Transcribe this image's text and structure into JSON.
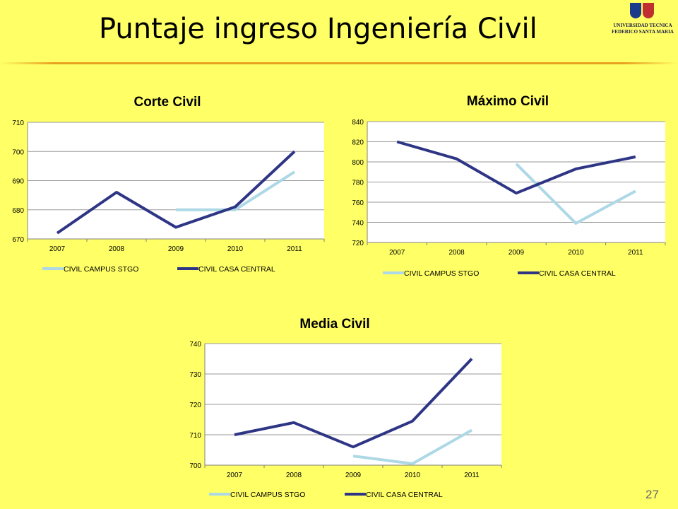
{
  "slide": {
    "title": "Puntaje ingreso Ingeniería Civil",
    "page_number": "27",
    "logo": {
      "line1": "UNIVERSIDAD TECNICA",
      "line2": "FEDERICO SANTA MARIA",
      "colors": [
        "#1a3a8a",
        "#c03030",
        "#2a6a2a",
        "#d0a020"
      ]
    },
    "accent_color": "#E8A020"
  },
  "colors": {
    "campus": "#ADD8E6",
    "casa": "#2E3585",
    "plot_bg": "#FFFFFF",
    "grid": "#9a9a9a"
  },
  "chart_data": [
    {
      "type": "line",
      "title": "Corte Civil",
      "categories": [
        "2007",
        "2008",
        "2009",
        "2010",
        "2011"
      ],
      "ylim": [
        670,
        710
      ],
      "yticks": [
        "670",
        "680",
        "690",
        "700",
        "710"
      ],
      "grid": true,
      "legend": "bottom",
      "series": [
        {
          "name": "CIVIL CAMPUS STGO",
          "values": [
            null,
            null,
            680,
            680,
            693
          ]
        },
        {
          "name": "CIVIL CASA CENTRAL",
          "values": [
            672,
            686,
            674,
            681,
            700
          ]
        }
      ]
    },
    {
      "type": "line",
      "title": "Máximo Civil",
      "categories": [
        "2007",
        "2008",
        "2009",
        "2010",
        "2011"
      ],
      "ylim": [
        720,
        840
      ],
      "yticks": [
        "720",
        "740",
        "760",
        "780",
        "800",
        "820",
        "840"
      ],
      "grid": true,
      "legend": "bottom",
      "series": [
        {
          "name": "CIVIL CAMPUS STGO",
          "values": [
            null,
            null,
            798,
            739,
            771
          ]
        },
        {
          "name": "CIVIL CASA CENTRAL",
          "values": [
            820,
            803,
            769,
            793,
            805
          ]
        }
      ]
    },
    {
      "type": "line",
      "title": "Media Civil",
      "categories": [
        "2007",
        "2008",
        "2009",
        "2010",
        "2011"
      ],
      "ylim": [
        700,
        740
      ],
      "yticks": [
        "700",
        "710",
        "720",
        "730",
        "740"
      ],
      "grid": true,
      "legend": "bottom",
      "series": [
        {
          "name": "CIVIL CAMPUS STGO",
          "values": [
            null,
            null,
            703,
            700.5,
            711.5
          ]
        },
        {
          "name": "CIVIL CASA CENTRAL",
          "values": [
            710,
            714,
            706,
            714.5,
            735
          ]
        }
      ]
    }
  ]
}
